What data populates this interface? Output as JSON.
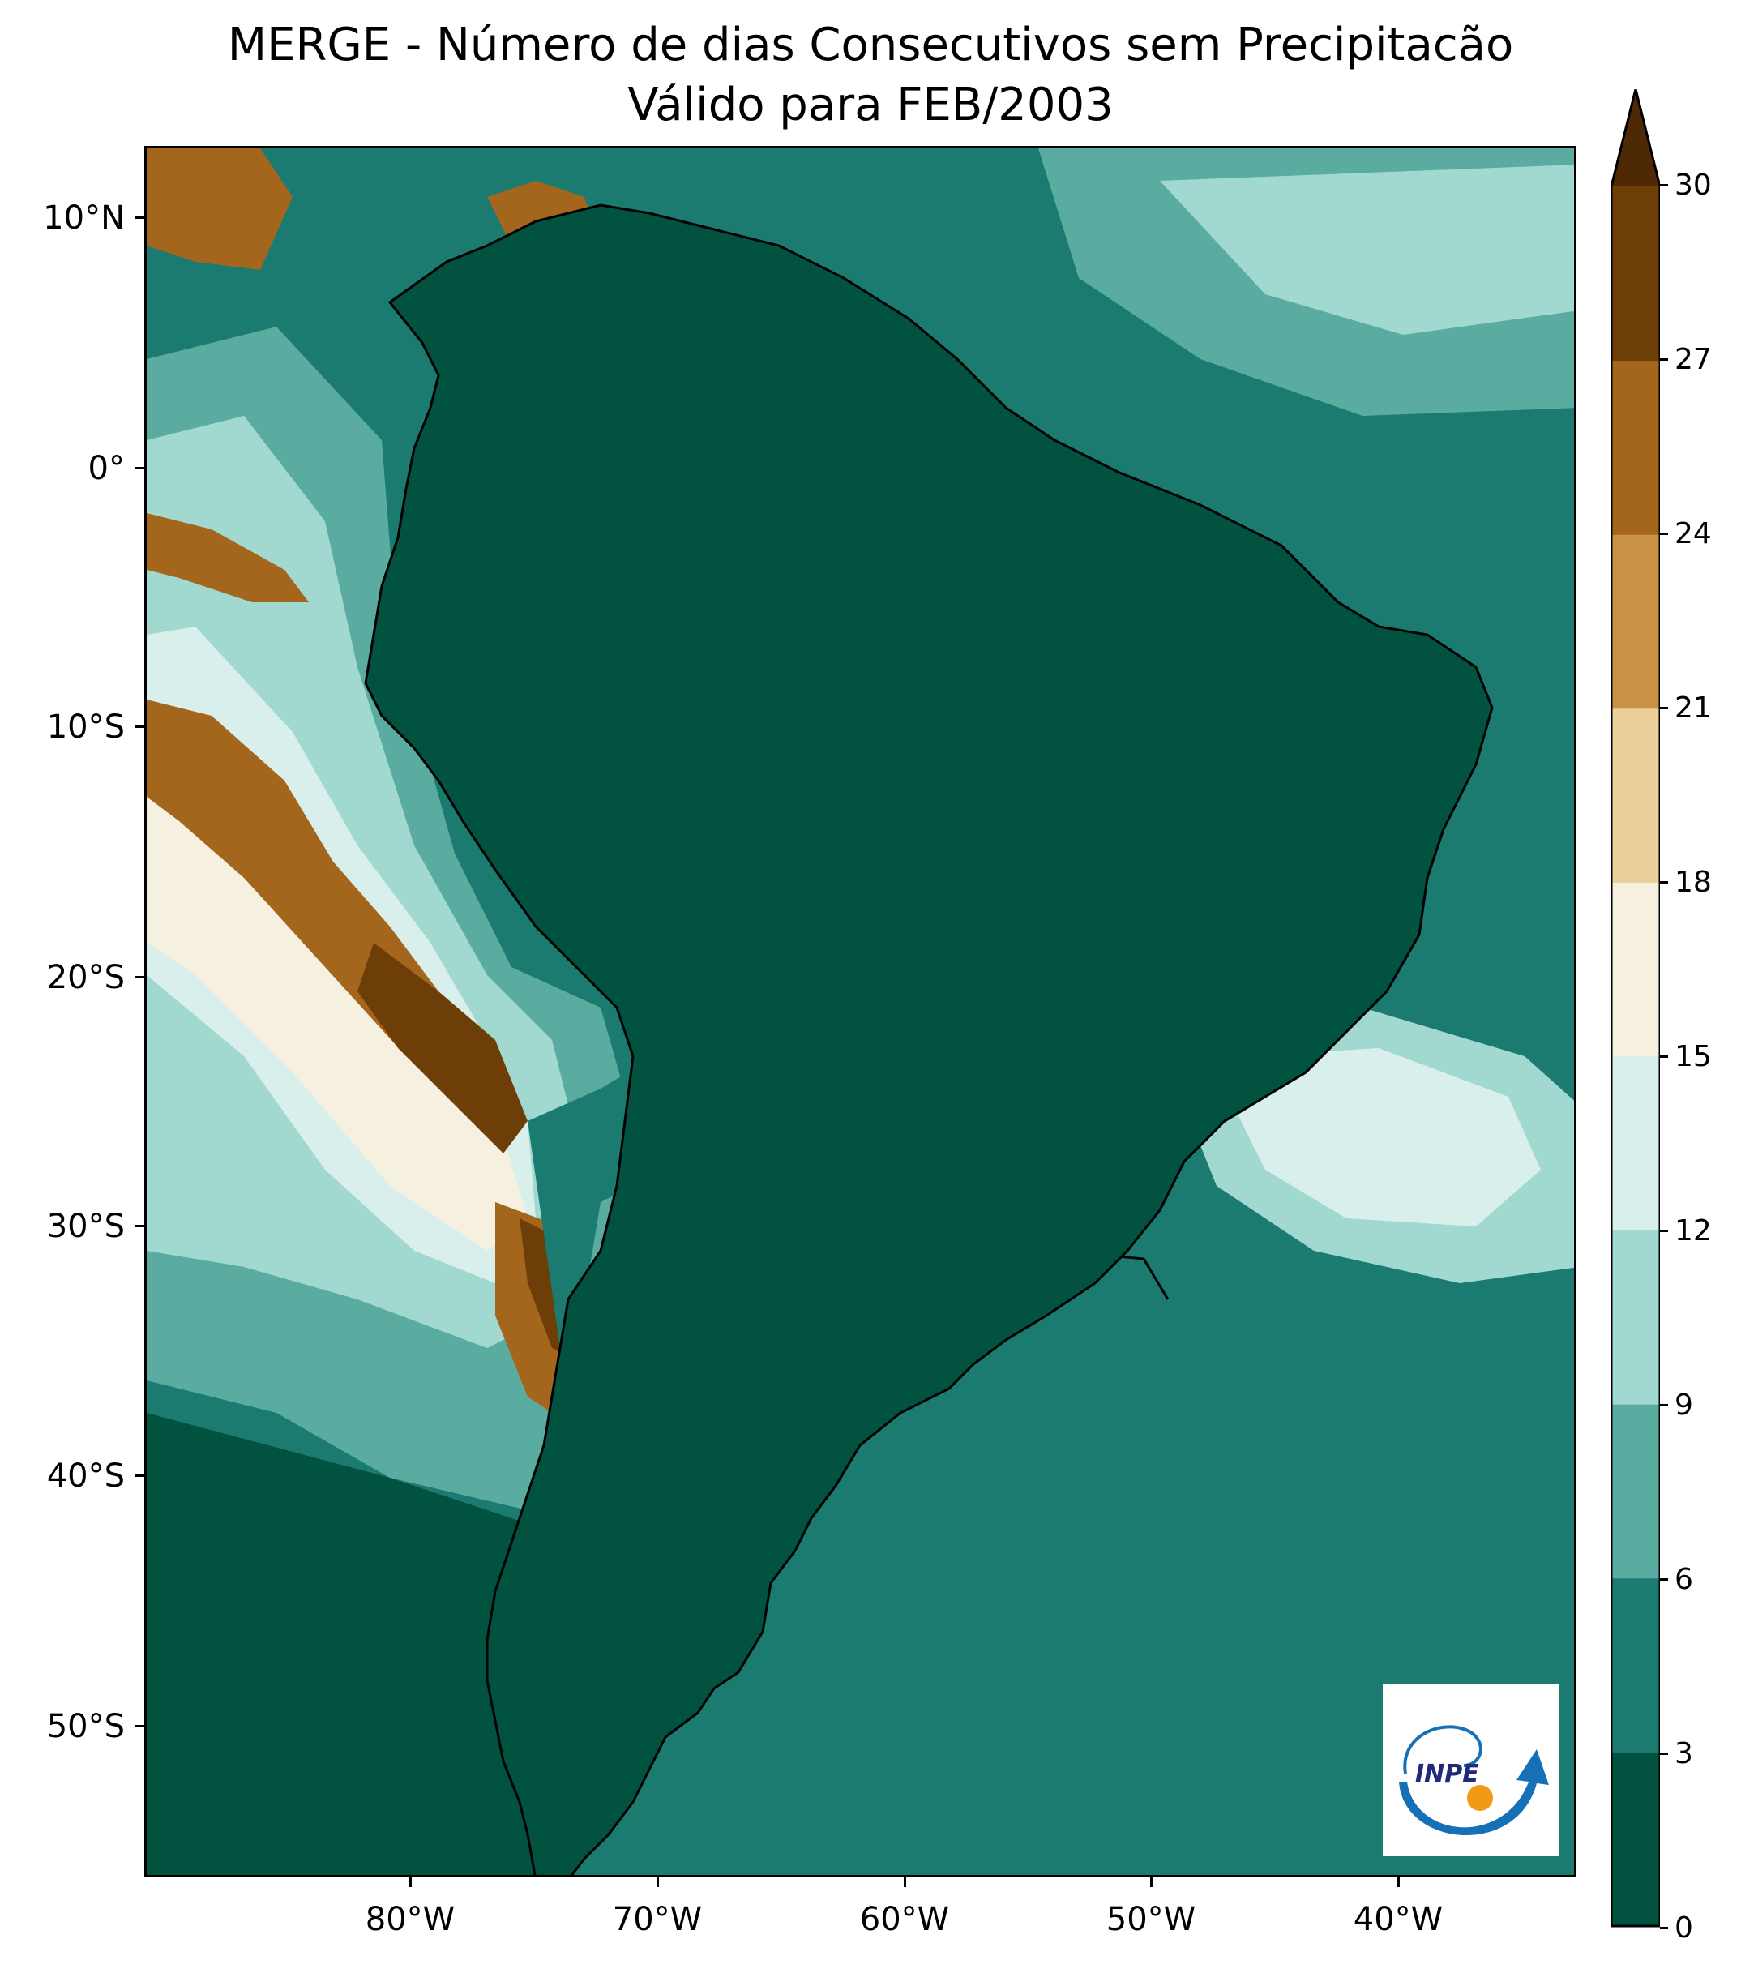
{
  "title": {
    "line1": "MERGE - Número de dias Consecutivos sem Precipitacão",
    "line2": "Válido para FEB/2003"
  },
  "axes": {
    "lat_labels": [
      "10°N",
      "0°",
      "10°S",
      "20°S",
      "30°S",
      "40°S",
      "50°S"
    ],
    "lon_labels": [
      "80°W",
      "70°W",
      "60°W",
      "50°W",
      "40°W"
    ]
  },
  "colorbar": {
    "ticks": [
      "0",
      "3",
      "6",
      "9",
      "12",
      "15",
      "18",
      "21",
      "24",
      "27",
      "30"
    ],
    "colors": [
      "#01523f",
      "#1b7b70",
      "#5aaca1",
      "#a1d9d0",
      "#d9efeb",
      "#f5f0e0",
      "#eacf98",
      "#c99245",
      "#a4651d",
      "#6d3e07",
      "#4e2905"
    ],
    "extend": "max"
  },
  "map": {
    "ocean_color": "#1b7b70",
    "land_color": "#01523f",
    "border_color": "#000000"
  },
  "logo": {
    "text": "INPE",
    "arrow_color": "#1670b5",
    "dot_color": "#f09a16"
  }
}
